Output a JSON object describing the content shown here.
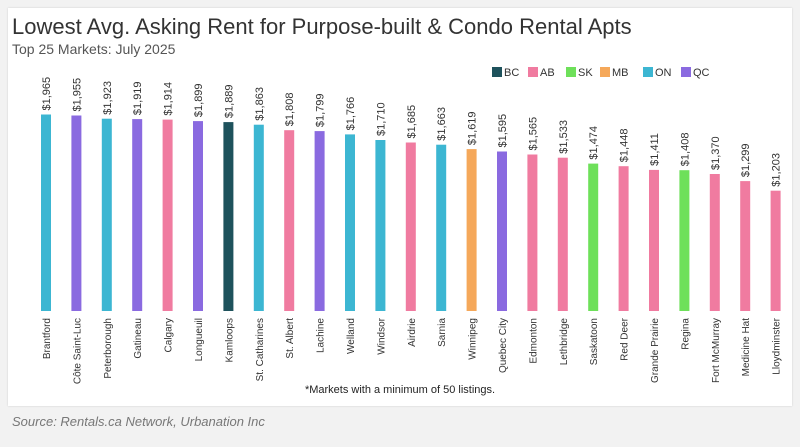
{
  "header": {
    "title": "Lowest Avg. Asking Rent for Purpose-built & Condo Rental Apts",
    "subtitle": "Top 25 Markets: July 2025"
  },
  "footer": {
    "note": "*Markets with a minimum of 50 listings.",
    "source": "Source: Rentals.ca Network, Urbanation Inc"
  },
  "province_colors": {
    "BC": "#1e525c",
    "AB": "#f07ba0",
    "SK": "#6ee05a",
    "MB": "#f5a85a",
    "ON": "#3cb6d2",
    "QC": "#8a6ae0"
  },
  "chart_data": {
    "type": "bar",
    "title": "Lowest Avg. Asking Rent for Purpose-built & Condo Rental Apts",
    "subtitle": "Top 25 Markets: July 2025",
    "xlabel": "",
    "ylabel": "",
    "ylim": [
      0,
      2000
    ],
    "legend": {
      "placement": "top-right",
      "entries": [
        "BC",
        "AB",
        "SK",
        "MB",
        "ON",
        "QC"
      ]
    },
    "grid": false,
    "categories": [
      "Brantford",
      "Côte Saint-Luc",
      "Peterborough",
      "Gatineau",
      "Calgary",
      "Longueuil",
      "Kamloops",
      "St. Catharines",
      "St. Albert",
      "Lachine",
      "Welland",
      "Windsor",
      "Airdrie",
      "Sarnia",
      "Winnipeg",
      "Quebec City",
      "Edmonton",
      "Lethbridge",
      "Saskatoon",
      "Red Deer",
      "Grande Prairie",
      "Regina",
      "Fort McMurray",
      "Medicine Hat",
      "Lloydminster"
    ],
    "provinces": [
      "ON",
      "QC",
      "ON",
      "QC",
      "AB",
      "QC",
      "BC",
      "ON",
      "AB",
      "QC",
      "ON",
      "ON",
      "AB",
      "ON",
      "MB",
      "QC",
      "AB",
      "AB",
      "SK",
      "AB",
      "AB",
      "SK",
      "AB",
      "AB",
      "AB"
    ],
    "values": [
      1965,
      1955,
      1923,
      1919,
      1914,
      1899,
      1889,
      1863,
      1808,
      1799,
      1766,
      1710,
      1685,
      1663,
      1619,
      1595,
      1565,
      1533,
      1474,
      1448,
      1411,
      1408,
      1370,
      1299,
      1203
    ],
    "value_labels": [
      "$1,965",
      "$1,955",
      "$1,923",
      "$1,919",
      "$1,914",
      "$1,899",
      "$1,889",
      "$1,863",
      "$1,808",
      "$1,799",
      "$1,766",
      "$1,710",
      "$1,685",
      "$1,663",
      "$1,619",
      "$1,595",
      "$1,565",
      "$1,533",
      "$1,474",
      "$1,448",
      "$1,411",
      "$1,408",
      "$1,370",
      "$1,299",
      "$1,203"
    ]
  }
}
